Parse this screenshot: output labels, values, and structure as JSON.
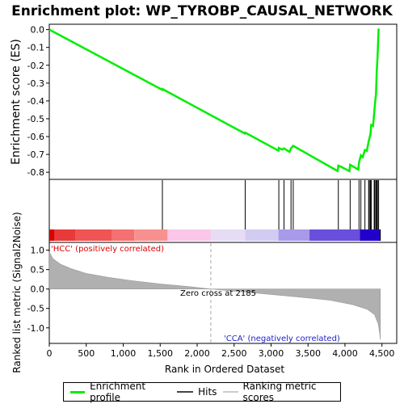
{
  "chart_data": {
    "type": "line",
    "title": "Enrichment plot: WP_TYROBP_CAUSAL_NETWORK",
    "top_panel": {
      "ylabel": "Enrichment score (ES)",
      "ylim": [
        -0.84,
        0.03
      ],
      "yticks": [
        0.0,
        -0.1,
        -0.2,
        -0.3,
        -0.4,
        -0.5,
        -0.6,
        -0.7,
        -0.8
      ],
      "ytick_labels": [
        "0.0",
        "-0.1",
        "-0.2",
        "-0.3",
        "-0.4",
        "-0.5",
        "-0.6",
        "-0.7",
        "-0.8"
      ],
      "series": [
        {
          "name": "Enrichment profile",
          "color": "#00ee00",
          "x": [
            0,
            1530,
            1535,
            1560,
            2645,
            2650,
            3100,
            3105,
            3150,
            3175,
            3250,
            3270,
            3300,
            3900,
            3910,
            3950,
            4060,
            4070,
            4180,
            4190,
            4215,
            4240,
            4270,
            4295,
            4320,
            4345,
            4355,
            4380,
            4395,
            4405,
            4420,
            4430,
            4440,
            4455
          ],
          "y": [
            0.0,
            -0.338,
            -0.333,
            -0.34,
            -0.583,
            -0.578,
            -0.679,
            -0.664,
            -0.673,
            -0.666,
            -0.686,
            -0.666,
            -0.652,
            -0.793,
            -0.763,
            -0.77,
            -0.794,
            -0.758,
            -0.785,
            -0.745,
            -0.705,
            -0.715,
            -0.675,
            -0.68,
            -0.628,
            -0.586,
            -0.535,
            -0.54,
            -0.47,
            -0.42,
            -0.36,
            -0.23,
            -0.16,
            0.006
          ]
        }
      ]
    },
    "hits": {
      "name": "Hits",
      "x": [
        1530,
        2650,
        3105,
        3175,
        3270,
        3300,
        3910,
        4070,
        4190,
        4215,
        4270,
        4320,
        4330,
        4345,
        4355,
        4395,
        4405,
        4420,
        4430,
        4440,
        4455
      ]
    },
    "bottom_panel": {
      "ylabel": "Ranked list metric (Signal2Noise)",
      "xlabel": "Rank in Ordered Dataset",
      "xlim": [
        0,
        4700
      ],
      "ylim": [
        -1.4,
        1.2
      ],
      "xticks": [
        0,
        500,
        1000,
        1500,
        2000,
        2500,
        3000,
        3500,
        4000,
        4500
      ],
      "xtick_labels": [
        "0",
        "500",
        "1,000",
        "1,500",
        "2,000",
        "2,500",
        "3,000",
        "3,500",
        "4,000",
        "4,500"
      ],
      "yticks": [
        1.0,
        0.5,
        0.0,
        -0.5,
        -1.0
      ],
      "ytick_labels": [
        "1.0",
        "0.5",
        "0.0",
        "-0.5",
        "-1.0"
      ],
      "series": [
        {
          "name": "Ranking metric scores",
          "color": "#b0b0b0",
          "x": [
            0,
            50,
            150,
            300,
            500,
            800,
            1100,
            1500,
            1900,
            2185,
            2600,
            3000,
            3400,
            3800,
            4100,
            4300,
            4400,
            4450,
            4470,
            4478
          ],
          "y": [
            0.95,
            0.78,
            0.64,
            0.52,
            0.4,
            0.3,
            0.22,
            0.13,
            0.06,
            0.0,
            -0.07,
            -0.14,
            -0.21,
            -0.29,
            -0.4,
            -0.52,
            -0.66,
            -0.9,
            -1.15,
            -1.3
          ]
        }
      ],
      "zero_cross_x": 2185,
      "annotations": {
        "zero_cross": "Zero cross at 2185",
        "positive": "'HCC' (positively correlated)",
        "negative": "'CCA' (negatively correlated)"
      }
    },
    "total_ranks": 4478,
    "colorbar": [
      {
        "from": 0,
        "to": 70,
        "color": "#dd0000"
      },
      {
        "from": 70,
        "to": 350,
        "color": "#e83a3a"
      },
      {
        "from": 350,
        "to": 850,
        "color": "#f05454"
      },
      {
        "from": 850,
        "to": 1150,
        "color": "#f57070"
      },
      {
        "from": 1150,
        "to": 1600,
        "color": "#f99090"
      },
      {
        "from": 1600,
        "to": 2185,
        "color": "#fbc6e8"
      },
      {
        "from": 2185,
        "to": 2650,
        "color": "#e6dcf5"
      },
      {
        "from": 2650,
        "to": 3100,
        "color": "#d2cbf2"
      },
      {
        "from": 3100,
        "to": 3520,
        "color": "#a89ae8"
      },
      {
        "from": 3520,
        "to": 4200,
        "color": "#6a4fdc"
      },
      {
        "from": 4200,
        "to": 4478,
        "color": "#2200cc"
      }
    ],
    "legend": {
      "placement": "bottom",
      "items": [
        "Enrichment profile",
        "Hits",
        "Ranking metric scores"
      ]
    }
  }
}
